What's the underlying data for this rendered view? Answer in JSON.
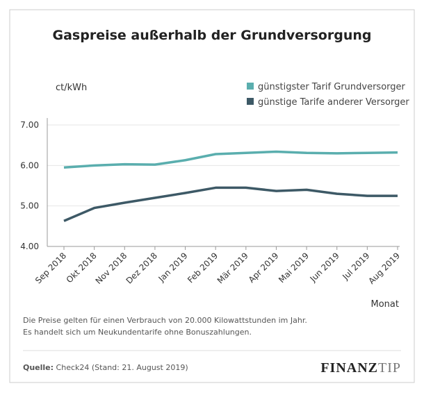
{
  "chart_data": {
    "type": "line",
    "title": "Gaspreise außerhalb der Grundversorgung",
    "y_label": "ct/kWh",
    "x_label": "Monat",
    "categories": [
      "Sep 2018",
      "Okt 2018",
      "Nov 2018",
      "Dez 2018",
      "Jan 2019",
      "Feb 2019",
      "Mär 2019",
      "Apr 2019",
      "Mai 2019",
      "Jun 2019",
      "Jul 2019",
      "Aug 2019"
    ],
    "series": [
      {
        "name": "günstigster Tarif Grundversorger",
        "color": "#5aaeae",
        "values": [
          5.95,
          6.0,
          6.03,
          6.02,
          6.13,
          6.28,
          6.31,
          6.34,
          6.31,
          6.3,
          6.31,
          6.32
        ]
      },
      {
        "name": "günstige Tarife anderer Versorger",
        "color": "#3d5966",
        "values": [
          4.63,
          4.95,
          5.08,
          5.2,
          5.32,
          5.45,
          5.45,
          5.37,
          5.4,
          5.3,
          5.25,
          5.25
        ]
      }
    ],
    "ylim": [
      4,
      7
    ],
    "yticks": [
      {
        "value": 4,
        "label": "4.00"
      },
      {
        "value": 5,
        "label": "5.00"
      },
      {
        "value": 6,
        "label": "6.00"
      },
      {
        "value": 7,
        "label": "7.00"
      }
    ],
    "grid": true,
    "legend": "top-right"
  },
  "notes": [
    "Die Preise gelten für einen Verbrauch von 20.000 Kilowattstunden im Jahr.",
    "Es handelt sich um Neukundentarife ohne Bonuszahlungen."
  ],
  "source": {
    "label": "Quelle:",
    "text": "Check24 (Stand: 21. August 2019)"
  },
  "logo": {
    "part1": "FINANZ",
    "part2": "TIP"
  }
}
